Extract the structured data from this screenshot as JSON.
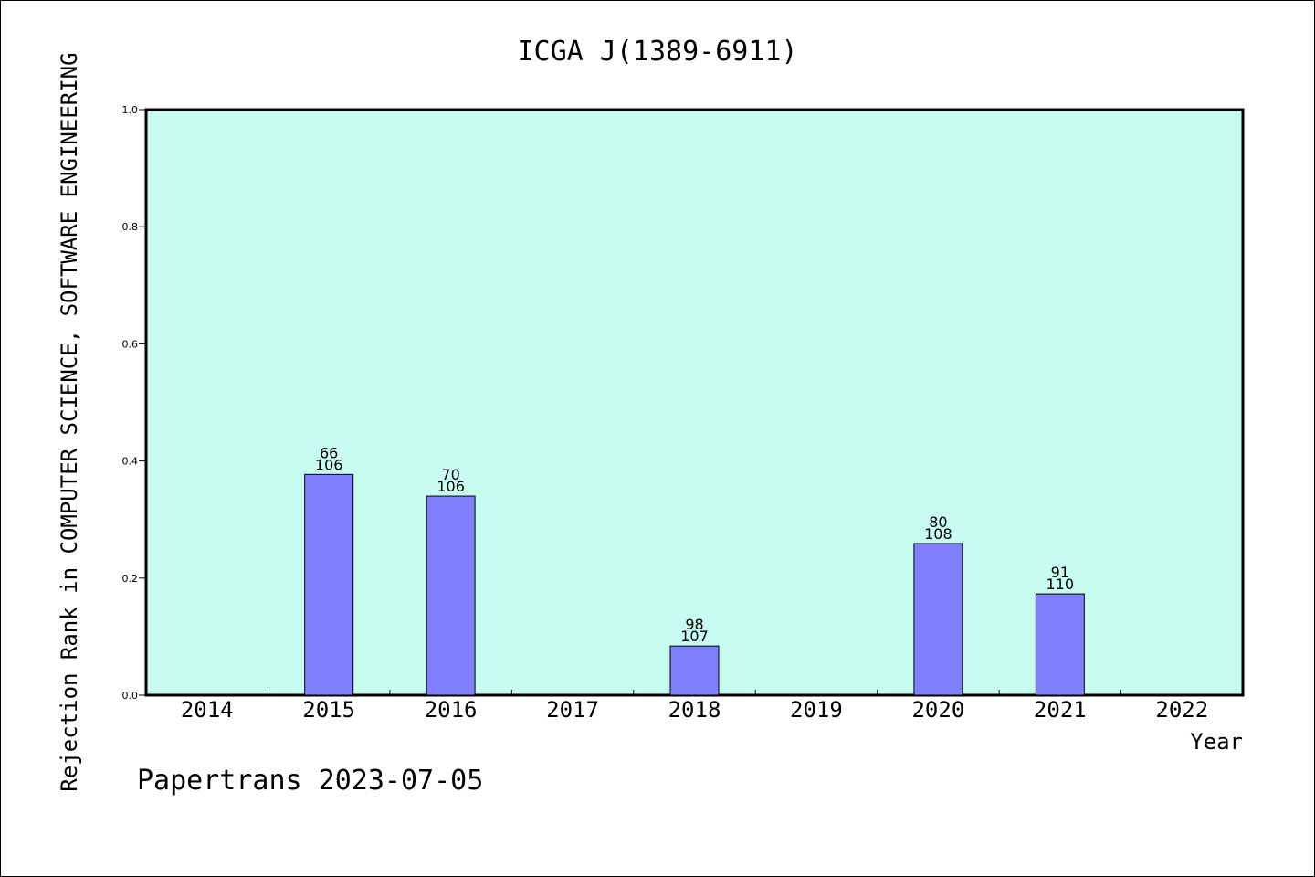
{
  "chart_data": {
    "type": "bar",
    "title": "ICGA J(1389-6911)",
    "xlabel": "Year",
    "ylabel": "Rejection Rank in COMPUTER SCIENCE, SOFTWARE ENGINEERING",
    "categories": [
      "2014",
      "2015",
      "2016",
      "2017",
      "2018",
      "2019",
      "2020",
      "2021",
      "2022"
    ],
    "values": [
      null,
      0.377,
      0.34,
      null,
      0.084,
      null,
      0.259,
      0.173,
      null
    ],
    "bar_labels": [
      null,
      {
        "rank": "66",
        "total": "106"
      },
      {
        "rank": "70",
        "total": "106"
      },
      null,
      {
        "rank": "98",
        "total": "107"
      },
      null,
      {
        "rank": "80",
        "total": "108"
      },
      {
        "rank": "91",
        "total": "110"
      },
      null
    ],
    "ylim": [
      0,
      1.0
    ],
    "yticks": [
      "0.0",
      "0.2",
      "0.4",
      "0.6",
      "0.8",
      "1.0"
    ],
    "grid": false,
    "colors": {
      "plot_background": "#c8fcee",
      "bar_fill": "#8080ff",
      "bar_stroke": "#000000"
    }
  },
  "footer": "Papertrans 2023-07-05"
}
